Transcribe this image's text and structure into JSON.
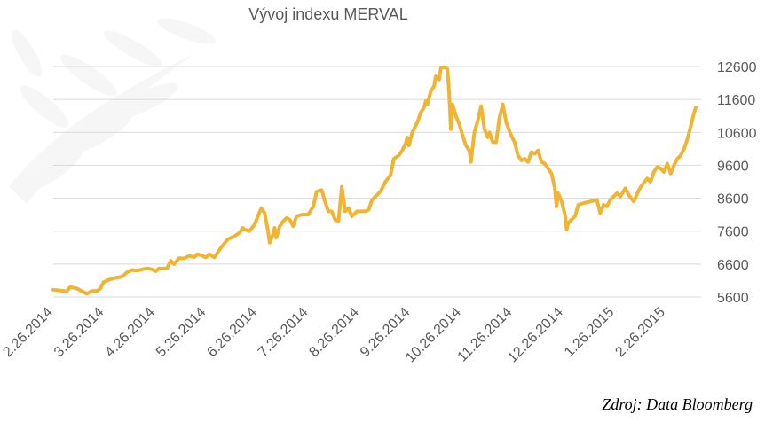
{
  "chart_data": {
    "type": "line",
    "title": "Vývoj indexu MERVAL",
    "xlabel": "",
    "ylabel": "",
    "ylim": [
      5600,
      12600
    ],
    "yticks": [
      5600,
      6600,
      7600,
      8600,
      9600,
      10600,
      11600,
      12600
    ],
    "x_tick_labels": [
      "2.26.2014",
      "3.26.2014",
      "4.26.2014",
      "5.26.2014",
      "6.26.2014",
      "7.26.2014",
      "8.26.2014",
      "9.26.2014",
      "10.26.2014",
      "11.26.2014",
      "12.26.2014",
      "1.26.2015",
      "2.26.2015"
    ],
    "y_axis_side": "right",
    "grid": true,
    "legend": "none",
    "color": "#f0b432",
    "series": [
      {
        "points": [
          [
            "2014-02-26",
            5820
          ],
          [
            "2014-03-03",
            5790
          ],
          [
            "2014-03-06",
            5770
          ],
          [
            "2014-03-08",
            5900
          ],
          [
            "2014-03-12",
            5860
          ],
          [
            "2014-03-15",
            5780
          ],
          [
            "2014-03-18",
            5700
          ],
          [
            "2014-03-21",
            5780
          ],
          [
            "2014-03-24",
            5780
          ],
          [
            "2014-03-26",
            5850
          ],
          [
            "2014-03-28",
            6050
          ],
          [
            "2014-03-31",
            6120
          ],
          [
            "2014-04-04",
            6180
          ],
          [
            "2014-04-08",
            6220
          ],
          [
            "2014-04-11",
            6350
          ],
          [
            "2014-04-14",
            6420
          ],
          [
            "2014-04-17",
            6400
          ],
          [
            "2014-04-20",
            6440
          ],
          [
            "2014-04-23",
            6470
          ],
          [
            "2014-04-26",
            6440
          ],
          [
            "2014-04-28",
            6380
          ],
          [
            "2014-04-30",
            6470
          ],
          [
            "2014-05-02",
            6460
          ],
          [
            "2014-05-05",
            6480
          ],
          [
            "2014-05-07",
            6700
          ],
          [
            "2014-05-09",
            6600
          ],
          [
            "2014-05-12",
            6780
          ],
          [
            "2014-05-15",
            6770
          ],
          [
            "2014-05-18",
            6850
          ],
          [
            "2014-05-21",
            6810
          ],
          [
            "2014-05-23",
            6900
          ],
          [
            "2014-05-26",
            6850
          ],
          [
            "2014-05-28",
            6800
          ],
          [
            "2014-05-30",
            6900
          ],
          [
            "2014-06-02",
            6800
          ],
          [
            "2014-06-04",
            6950
          ],
          [
            "2014-06-06",
            7100
          ],
          [
            "2014-06-10",
            7350
          ],
          [
            "2014-06-14",
            7450
          ],
          [
            "2014-06-17",
            7550
          ],
          [
            "2014-06-19",
            7700
          ],
          [
            "2014-06-20",
            7650
          ],
          [
            "2014-06-23",
            7600
          ],
          [
            "2014-06-26",
            7800
          ],
          [
            "2014-06-28",
            8050
          ],
          [
            "2014-06-30",
            8300
          ],
          [
            "2014-07-02",
            8150
          ],
          [
            "2014-07-04",
            7600
          ],
          [
            "2014-07-05",
            7250
          ],
          [
            "2014-07-07",
            7500
          ],
          [
            "2014-07-08",
            7700
          ],
          [
            "2014-07-09",
            7400
          ],
          [
            "2014-07-11",
            7750
          ],
          [
            "2014-07-13",
            7900
          ],
          [
            "2014-07-15",
            8000
          ],
          [
            "2014-07-17",
            7950
          ],
          [
            "2014-07-19",
            7750
          ],
          [
            "2014-07-21",
            8050
          ],
          [
            "2014-07-24",
            8100
          ],
          [
            "2014-07-26",
            8100
          ],
          [
            "2014-07-28",
            8100
          ],
          [
            "2014-07-31",
            8350
          ],
          [
            "2014-08-02",
            8800
          ],
          [
            "2014-08-05",
            8850
          ],
          [
            "2014-08-07",
            8500
          ],
          [
            "2014-08-09",
            8200
          ],
          [
            "2014-08-11",
            8200
          ],
          [
            "2014-08-13",
            7950
          ],
          [
            "2014-08-15",
            7900
          ],
          [
            "2014-08-17",
            8950
          ],
          [
            "2014-08-19",
            8200
          ],
          [
            "2014-08-21",
            8300
          ],
          [
            "2014-08-23",
            8050
          ],
          [
            "2014-08-26",
            8200
          ],
          [
            "2014-08-29",
            8200
          ],
          [
            "2014-08-31",
            8200
          ],
          [
            "2014-09-02",
            8250
          ],
          [
            "2014-09-04",
            8550
          ],
          [
            "2014-09-06",
            8650
          ],
          [
            "2014-09-09",
            8800
          ],
          [
            "2014-09-12",
            9100
          ],
          [
            "2014-09-15",
            9300
          ],
          [
            "2014-09-17",
            9800
          ],
          [
            "2014-09-20",
            9900
          ],
          [
            "2014-09-22",
            10050
          ],
          [
            "2014-09-24",
            10250
          ],
          [
            "2014-09-25",
            10450
          ],
          [
            "2014-09-26",
            10200
          ],
          [
            "2014-09-28",
            10600
          ],
          [
            "2014-10-01",
            10900
          ],
          [
            "2014-10-03",
            11200
          ],
          [
            "2014-10-05",
            11350
          ],
          [
            "2014-10-06",
            11550
          ],
          [
            "2014-10-07",
            11450
          ],
          [
            "2014-10-09",
            11850
          ],
          [
            "2014-10-11",
            12000
          ],
          [
            "2014-10-12",
            12300
          ],
          [
            "2014-10-14",
            12200
          ],
          [
            "2014-10-15",
            12550
          ],
          [
            "2014-10-17",
            12580
          ],
          [
            "2014-10-19",
            12520
          ],
          [
            "2014-10-20",
            11800
          ],
          [
            "2014-10-21",
            10700
          ],
          [
            "2014-10-22",
            11450
          ],
          [
            "2014-10-24",
            11100
          ],
          [
            "2014-10-26",
            10850
          ],
          [
            "2014-10-28",
            10500
          ],
          [
            "2014-10-30",
            10200
          ],
          [
            "2014-11-01",
            10050
          ],
          [
            "2014-11-02",
            9700
          ],
          [
            "2014-11-04",
            10600
          ],
          [
            "2014-11-06",
            10950
          ],
          [
            "2014-11-08",
            11400
          ],
          [
            "2014-11-10",
            10700
          ],
          [
            "2014-11-12",
            10450
          ],
          [
            "2014-11-13",
            10600
          ],
          [
            "2014-11-15",
            10300
          ],
          [
            "2014-11-17",
            10300
          ],
          [
            "2014-11-19",
            11050
          ],
          [
            "2014-11-21",
            11450
          ],
          [
            "2014-11-23",
            10900
          ],
          [
            "2014-11-26",
            10500
          ],
          [
            "2014-11-28",
            10300
          ],
          [
            "2014-11-30",
            9900
          ],
          [
            "2014-12-02",
            9750
          ],
          [
            "2014-12-04",
            9800
          ],
          [
            "2014-12-06",
            9700
          ],
          [
            "2014-12-08",
            10000
          ],
          [
            "2014-12-10",
            9950
          ],
          [
            "2014-12-12",
            10050
          ],
          [
            "2014-12-14",
            9700
          ],
          [
            "2014-12-16",
            9650
          ],
          [
            "2014-12-18",
            9500
          ],
          [
            "2014-12-20",
            9350
          ],
          [
            "2014-12-22",
            8900
          ],
          [
            "2014-12-23",
            8350
          ],
          [
            "2014-12-24",
            8750
          ],
          [
            "2014-12-26",
            8500
          ],
          [
            "2014-12-28",
            8100
          ],
          [
            "2014-12-29",
            7650
          ],
          [
            "2014-12-30",
            7850
          ],
          [
            "2015-01-01",
            7950
          ],
          [
            "2015-01-03",
            8050
          ],
          [
            "2015-01-05",
            8400
          ],
          [
            "2015-01-08",
            8450
          ],
          [
            "2015-01-12",
            8500
          ],
          [
            "2015-01-16",
            8550
          ],
          [
            "2015-01-18",
            8150
          ],
          [
            "2015-01-20",
            8400
          ],
          [
            "2015-01-22",
            8350
          ],
          [
            "2015-01-24",
            8550
          ],
          [
            "2015-01-26",
            8650
          ],
          [
            "2015-01-28",
            8750
          ],
          [
            "2015-01-30",
            8650
          ],
          [
            "2015-02-02",
            8900
          ],
          [
            "2015-02-04",
            8700
          ],
          [
            "2015-02-07",
            8500
          ],
          [
            "2015-02-10",
            8850
          ],
          [
            "2015-02-12",
            9000
          ],
          [
            "2015-02-15",
            9200
          ],
          [
            "2015-02-17",
            9100
          ],
          [
            "2015-02-19",
            9400
          ],
          [
            "2015-02-21",
            9550
          ],
          [
            "2015-02-23",
            9500
          ],
          [
            "2015-02-25",
            9400
          ],
          [
            "2015-02-27",
            9650
          ],
          [
            "2015-03-01",
            9350
          ],
          [
            "2015-03-03",
            9600
          ],
          [
            "2015-03-05",
            9800
          ],
          [
            "2015-03-07",
            9900
          ],
          [
            "2015-03-09",
            10100
          ],
          [
            "2015-03-11",
            10400
          ],
          [
            "2015-03-13",
            10800
          ],
          [
            "2015-03-15",
            11200
          ],
          [
            "2015-03-16",
            11350
          ]
        ]
      }
    ]
  },
  "source": "Zdroj: Data Bloomberg"
}
